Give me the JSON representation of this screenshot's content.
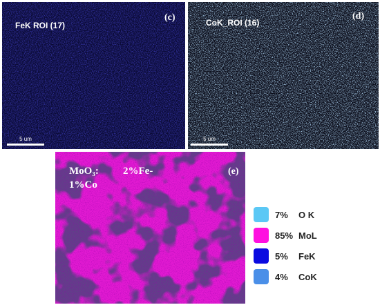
{
  "panels": [
    {
      "label": "FeK  ROI (17)",
      "tag": "(c)",
      "scale": "5 um"
    },
    {
      "label": "CoK_ROI (16)",
      "tag": "(d)",
      "scale": "5 um"
    },
    {
      "label_line1": "MoO₃:",
      "label_mid": "2%Fe-",
      "label_line2": "1%Co",
      "tag": "(e)"
    }
  ],
  "legend": [
    {
      "percent": "7%",
      "element": "O K",
      "color": "#5bc8f5"
    },
    {
      "percent": "85%",
      "element": "MoL",
      "color": "#ff10e0"
    },
    {
      "percent": "5%",
      "element": "FeK",
      "color": "#0a0ae0"
    },
    {
      "percent": "4%",
      "element": "CoK",
      "color": "#4a8fe8"
    }
  ]
}
